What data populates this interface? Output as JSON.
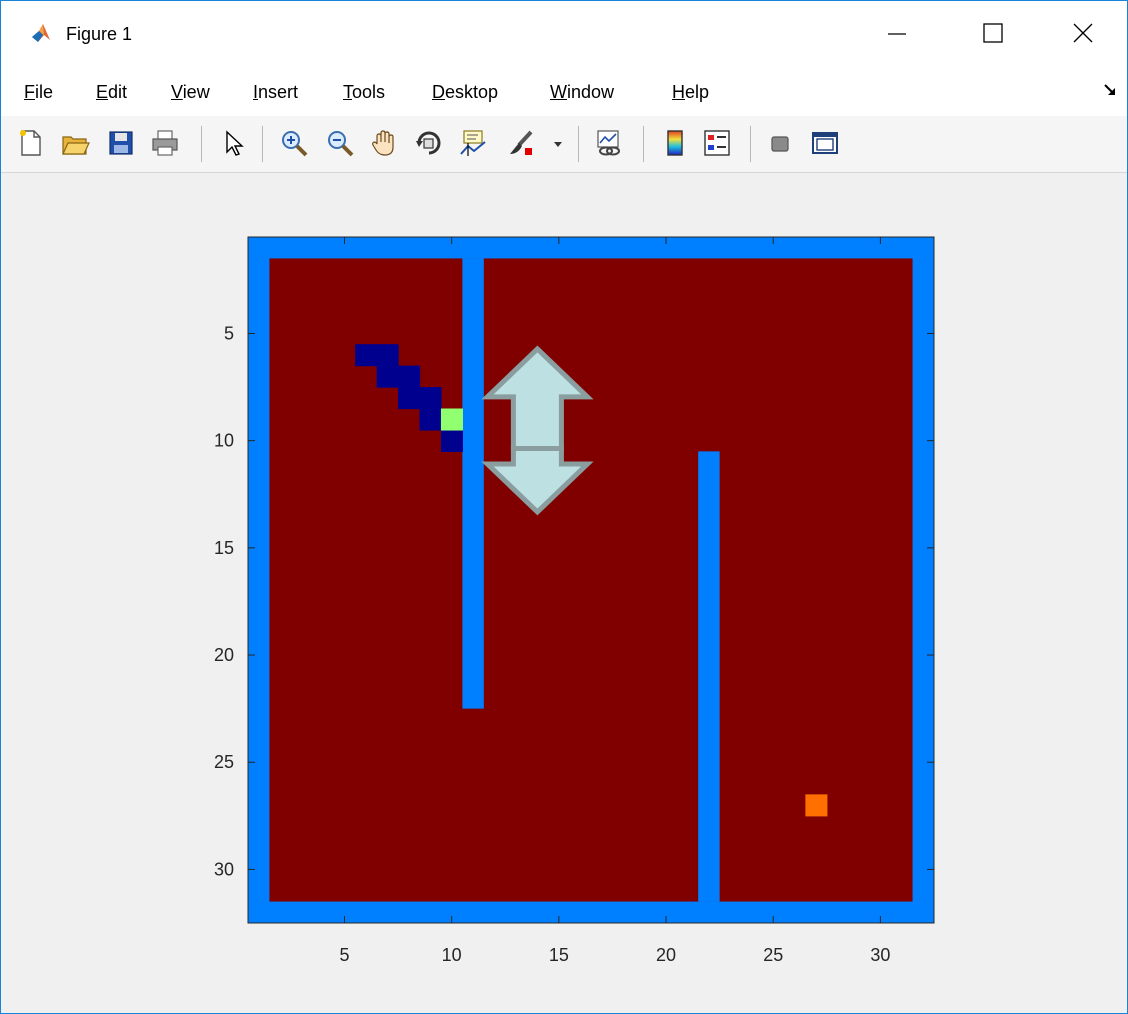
{
  "window": {
    "title": "Figure 1",
    "buttons": {
      "minimize": "minimize-icon",
      "maximize": "maximize-icon",
      "close": "close-icon"
    }
  },
  "menu": [
    {
      "accel": "F",
      "rest": "ile"
    },
    {
      "accel": "E",
      "rest": "dit"
    },
    {
      "accel": "V",
      "rest": "iew"
    },
    {
      "accel": "I",
      "rest": "nsert"
    },
    {
      "accel": "T",
      "rest": "ools"
    },
    {
      "accel": "D",
      "rest": "esktop"
    },
    {
      "accel": "W",
      "rest": "indow"
    },
    {
      "accel": "H",
      "rest": "elp"
    }
  ],
  "toolbar": [
    "new-figure-icon",
    "open-file-icon",
    "save-icon",
    "print-icon",
    "pointer-icon",
    "zoom-in-icon",
    "zoom-out-icon",
    "pan-icon",
    "rotate-3d-icon",
    "data-cursor-icon",
    "brush-icon",
    "link-plot-icon",
    "colorbar-icon",
    "legend-icon",
    "hide-plot-tools-icon",
    "show-plot-tools-icon"
  ],
  "chart_data": {
    "type": "heatmap",
    "title": "",
    "xlabel": "",
    "ylabel": "",
    "xlim": [
      0.5,
      32.5
    ],
    "ylim": [
      0.5,
      32.5
    ],
    "y_reversed": true,
    "xticks": [
      5,
      10,
      15,
      20,
      25,
      30
    ],
    "yticks": [
      5,
      10,
      15,
      20,
      25,
      30
    ],
    "colors": {
      "floor": "#800000",
      "wall": "#0080ff",
      "trail": "#00008f",
      "agent": "#90ff70",
      "goal": "#ff7000"
    },
    "grid_size": [
      32,
      32
    ],
    "border_wall": true,
    "wall_segments": [
      {
        "x": 11,
        "y_from": 2,
        "y_to": 22
      },
      {
        "x": 22,
        "y_from": 11,
        "y_to": 31
      }
    ],
    "trail_cells": [
      [
        6,
        6
      ],
      [
        7,
        6
      ],
      [
        7,
        7
      ],
      [
        8,
        7
      ],
      [
        8,
        8
      ],
      [
        9,
        8
      ],
      [
        9,
        9
      ],
      [
        10,
        10
      ]
    ],
    "agent_cell": [
      10,
      9
    ],
    "goal_cell": [
      27,
      27
    ],
    "annotation": {
      "shape": "double-arrow-vertical",
      "fill": "#bde0e2",
      "stroke": "#8a9ea0",
      "x_center": 14,
      "y_top": 6,
      "y_bottom": 13
    }
  }
}
